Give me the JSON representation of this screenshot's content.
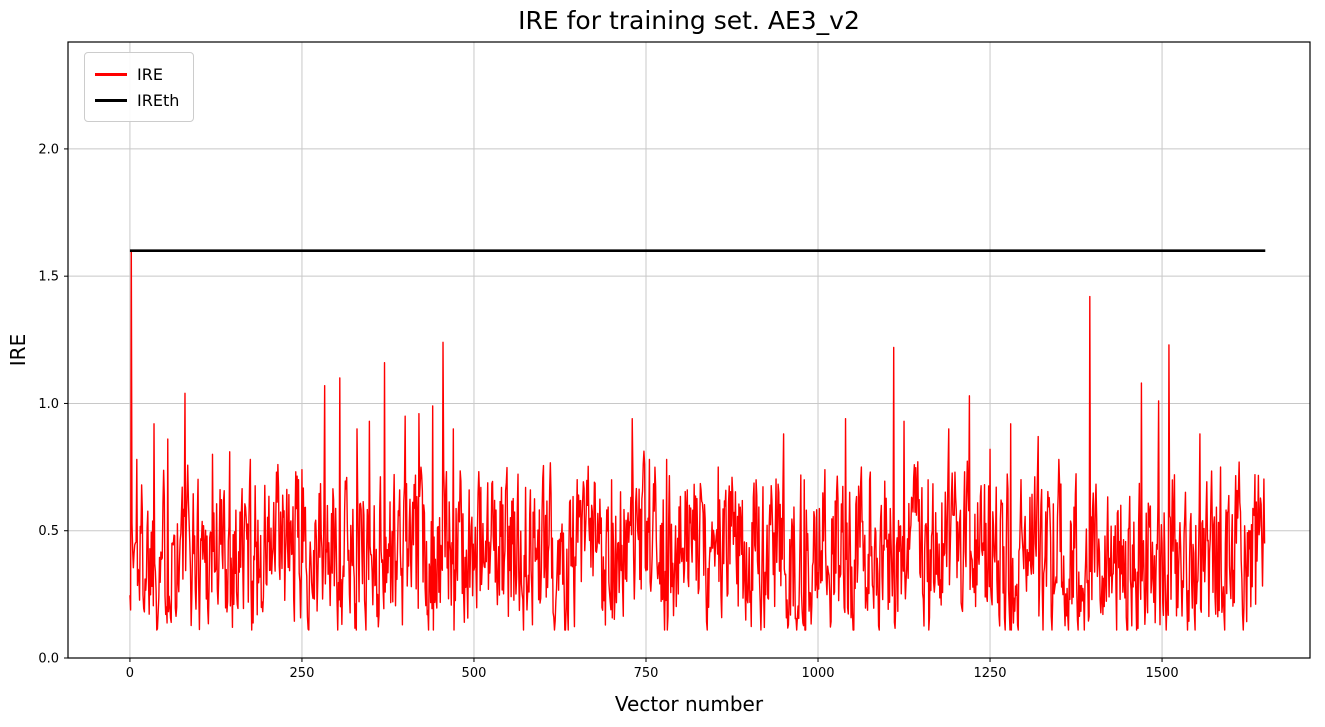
{
  "figure": {
    "title": "IRE for training set. AE3_v2",
    "xlabel": "Vector number",
    "ylabel": "IRE"
  },
  "chart_data": {
    "type": "line",
    "title": "IRE for training set. AE3_v2",
    "xlabel": "Vector number",
    "ylabel": "IRE",
    "xlim": [
      -90,
      1715
    ],
    "ylim": [
      0,
      2.42
    ],
    "xticks": [
      0,
      250,
      500,
      750,
      1000,
      1250,
      1500
    ],
    "yticks": [
      0,
      0.5,
      1,
      1.5,
      2
    ],
    "grid": true,
    "grid_color": "#c8c8c8",
    "background": "#ffffff",
    "legend": {
      "position": "upper-left",
      "entries": [
        {
          "label": "IRE",
          "color": "#ff0000"
        },
        {
          "label": "IREth",
          "color": "#000000"
        }
      ]
    },
    "series": [
      {
        "name": "IRE",
        "kind": "noisy",
        "color": "#ff0000",
        "line_width": 1.4,
        "n_points": 1650,
        "x_start": 0,
        "x_step": 1,
        "baseline_mean": 0.42,
        "baseline_min": 0.11,
        "baseline_max": 0.93,
        "ar_coeff": 0.35,
        "noise_scale": 0.55,
        "noise_seed": 1337,
        "spikes": [
          [
            2,
            1.6
          ],
          [
            10,
            0.78
          ],
          [
            35,
            0.92
          ],
          [
            55,
            0.86
          ],
          [
            80,
            1.04
          ],
          [
            120,
            0.8
          ],
          [
            145,
            0.81
          ],
          [
            175,
            0.78
          ],
          [
            215,
            0.76
          ],
          [
            250,
            0.74
          ],
          [
            283,
            1.07
          ],
          [
            305,
            1.1
          ],
          [
            330,
            0.9
          ],
          [
            348,
            0.93
          ],
          [
            370,
            1.16
          ],
          [
            400,
            0.95
          ],
          [
            420,
            0.96
          ],
          [
            440,
            0.99
          ],
          [
            455,
            1.24
          ],
          [
            470,
            0.9
          ],
          [
            510,
            0.67
          ],
          [
            540,
            0.67
          ],
          [
            575,
            0.67
          ],
          [
            610,
            0.66
          ],
          [
            640,
            0.62
          ],
          [
            665,
            0.6
          ],
          [
            700,
            0.7
          ],
          [
            730,
            0.94
          ],
          [
            755,
            0.78
          ],
          [
            780,
            0.78
          ],
          [
            810,
            0.66
          ],
          [
            830,
            0.66
          ],
          [
            855,
            0.75
          ],
          [
            875,
            0.71
          ],
          [
            910,
            0.7
          ],
          [
            950,
            0.88
          ],
          [
            980,
            0.7
          ],
          [
            1010,
            0.74
          ],
          [
            1040,
            0.94
          ],
          [
            1075,
            0.7
          ],
          [
            1110,
            1.22
          ],
          [
            1125,
            0.93
          ],
          [
            1160,
            0.7
          ],
          [
            1190,
            0.9
          ],
          [
            1220,
            1.03
          ],
          [
            1250,
            0.82
          ],
          [
            1280,
            0.92
          ],
          [
            1320,
            0.87
          ],
          [
            1350,
            0.78
          ],
          [
            1395,
            1.42
          ],
          [
            1440,
            0.6
          ],
          [
            1470,
            1.08
          ],
          [
            1495,
            1.01
          ],
          [
            1510,
            1.23
          ],
          [
            1555,
            0.88
          ],
          [
            1585,
            0.75
          ],
          [
            1610,
            0.55
          ],
          [
            1635,
            0.72
          ],
          [
            1649,
            0.45
          ]
        ]
      },
      {
        "name": "IREth",
        "kind": "constant",
        "color": "#000000",
        "line_width": 2.6,
        "value": 1.6,
        "x_start": 0,
        "x_end": 1650
      }
    ]
  }
}
